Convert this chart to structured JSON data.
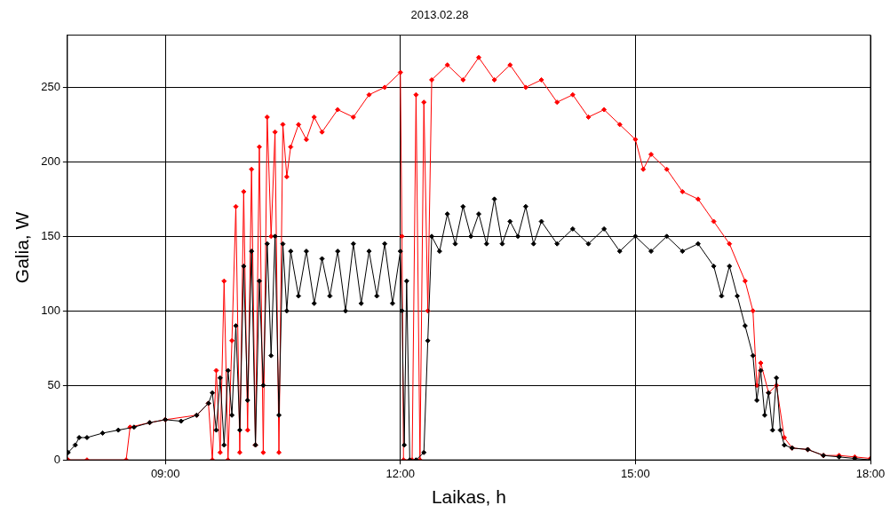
{
  "chart_data": {
    "type": "line",
    "title": "2013.02.28",
    "xlabel": "Laikas, h",
    "ylabel": "Galia, W",
    "xlim": [
      7.75,
      18
    ],
    "ylim": [
      0,
      285
    ],
    "xticks": [
      {
        "value": 9,
        "label": "09:00"
      },
      {
        "value": 12,
        "label": "12:00"
      },
      {
        "value": 15,
        "label": "15:00"
      },
      {
        "value": 18,
        "label": "18:00"
      }
    ],
    "yticks": [
      0,
      50,
      100,
      150,
      200,
      250
    ],
    "grid": true,
    "legend": false,
    "marker": "diamond",
    "line_style": "solid",
    "series": [
      {
        "color": "#ff0000",
        "x": [
          7.76,
          8.0,
          8.5,
          8.55,
          8.8,
          9.0,
          9.4,
          9.55,
          9.6,
          9.65,
          9.7,
          9.75,
          9.8,
          9.85,
          9.9,
          9.95,
          10.0,
          10.05,
          10.1,
          10.15,
          10.2,
          10.25,
          10.3,
          10.35,
          10.4,
          10.45,
          10.5,
          10.55,
          10.6,
          10.7,
          10.8,
          10.9,
          11.0,
          11.2,
          11.4,
          11.6,
          11.8,
          12.0,
          12.02,
          12.04,
          12.15,
          12.2,
          12.25,
          12.3,
          12.35,
          12.4,
          12.6,
          12.8,
          13.0,
          13.2,
          13.4,
          13.6,
          13.8,
          14.0,
          14.2,
          14.4,
          14.6,
          14.8,
          15.0,
          15.1,
          15.2,
          15.4,
          15.6,
          15.8,
          16.0,
          16.2,
          16.4,
          16.5,
          16.55,
          16.6,
          16.7,
          16.8,
          16.9,
          17.0,
          17.2,
          17.4,
          17.6,
          17.8,
          18.0
        ],
        "values": [
          0,
          0,
          0,
          22,
          25,
          27,
          30,
          38,
          0,
          60,
          5,
          120,
          0,
          80,
          170,
          5,
          180,
          20,
          195,
          10,
          210,
          5,
          230,
          150,
          220,
          5,
          225,
          190,
          210,
          225,
          215,
          230,
          220,
          235,
          230,
          245,
          250,
          260,
          150,
          0,
          0,
          245,
          0,
          240,
          100,
          255,
          265,
          255,
          270,
          255,
          265,
          250,
          255,
          240,
          245,
          230,
          235,
          225,
          215,
          195,
          205,
          195,
          180,
          175,
          160,
          145,
          120,
          100,
          50,
          65,
          45,
          50,
          15,
          8,
          7,
          3,
          3,
          2,
          1
        ]
      },
      {
        "color": "#000000",
        "x": [
          7.76,
          7.85,
          7.9,
          8.0,
          8.2,
          8.4,
          8.6,
          8.8,
          9.0,
          9.2,
          9.4,
          9.55,
          9.6,
          9.65,
          9.7,
          9.75,
          9.8,
          9.85,
          9.9,
          9.95,
          10.0,
          10.05,
          10.1,
          10.15,
          10.2,
          10.25,
          10.3,
          10.35,
          10.4,
          10.45,
          10.5,
          10.55,
          10.6,
          10.7,
          10.8,
          10.9,
          11.0,
          11.1,
          11.2,
          11.3,
          11.4,
          11.5,
          11.6,
          11.7,
          11.8,
          11.9,
          12.0,
          12.02,
          12.05,
          12.08,
          12.12,
          12.2,
          12.3,
          12.35,
          12.4,
          12.5,
          12.6,
          12.7,
          12.8,
          12.9,
          13.0,
          13.1,
          13.2,
          13.3,
          13.4,
          13.5,
          13.6,
          13.7,
          13.8,
          14.0,
          14.2,
          14.4,
          14.6,
          14.8,
          15.0,
          15.2,
          15.4,
          15.6,
          15.8,
          16.0,
          16.1,
          16.2,
          16.3,
          16.4,
          16.5,
          16.55,
          16.6,
          16.65,
          16.7,
          16.75,
          16.8,
          16.85,
          16.9,
          17.0,
          17.2,
          17.4,
          17.6,
          17.8,
          18.0
        ],
        "values": [
          5,
          10,
          15,
          15,
          18,
          20,
          22,
          25,
          27,
          26,
          30,
          38,
          45,
          20,
          55,
          10,
          60,
          30,
          90,
          20,
          130,
          40,
          140,
          10,
          120,
          50,
          145,
          70,
          150,
          30,
          145,
          100,
          140,
          110,
          140,
          105,
          135,
          110,
          140,
          100,
          145,
          105,
          140,
          110,
          145,
          105,
          140,
          100,
          10,
          120,
          0,
          0,
          5,
          80,
          150,
          140,
          165,
          145,
          170,
          150,
          165,
          145,
          175,
          145,
          160,
          150,
          170,
          145,
          160,
          145,
          155,
          145,
          155,
          140,
          150,
          140,
          150,
          140,
          145,
          130,
          110,
          130,
          110,
          90,
          70,
          40,
          60,
          30,
          45,
          20,
          55,
          20,
          10,
          8,
          7,
          3,
          2,
          1,
          0
        ]
      }
    ]
  }
}
